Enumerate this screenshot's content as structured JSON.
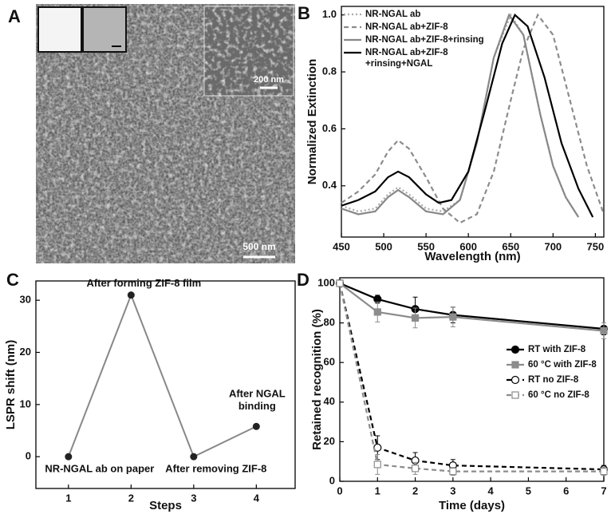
{
  "panels": [
    "A",
    "B",
    "C",
    "D"
  ],
  "image": {
    "scale_bars": [
      "200 nm",
      "500 nm"
    ]
  },
  "chart_data": [
    {
      "type": "line",
      "xlabel": "Wavelength (nm)",
      "ylabel": "Normalized Extinction",
      "xlim": [
        450,
        760
      ],
      "xticks": [
        450,
        500,
        550,
        600,
        650,
        700,
        750
      ],
      "ylim": [
        0.22,
        1.03
      ],
      "yticks": [
        0.4,
        0.6,
        0.8,
        {
          "value": 1,
          "label": "1.0"
        }
      ],
      "legend": "upper left",
      "series": [
        {
          "name": "NR-NGAL ab",
          "color": "#aaaaaa",
          "style": "dotted",
          "x": [
            450,
            470,
            490,
            505,
            517,
            530,
            550,
            570,
            590,
            610,
            630,
            650,
            665,
            685,
            700,
            715,
            730
          ],
          "values": [
            0.33,
            0.31,
            0.32,
            0.37,
            0.395,
            0.37,
            0.32,
            0.31,
            0.35,
            0.55,
            0.85,
            1.0,
            0.93,
            0.65,
            0.47,
            0.36,
            0.29
          ]
        },
        {
          "name": "NR-NGAL ab+ZIF-8",
          "color": "#8c8c8c",
          "style": "dashed",
          "x": [
            450,
            470,
            490,
            505,
            517,
            530,
            550,
            570,
            590,
            610,
            630,
            650,
            665,
            682,
            700,
            720,
            740,
            760
          ],
          "values": [
            0.34,
            0.38,
            0.44,
            0.52,
            0.56,
            0.53,
            0.43,
            0.32,
            0.27,
            0.3,
            0.45,
            0.7,
            0.88,
            1.0,
            0.93,
            0.7,
            0.47,
            0.3
          ]
        },
        {
          "name": "NR-NGAL ab+ZIF-8+rinsing",
          "color": "#888888",
          "style": "solid",
          "x": [
            450,
            470,
            490,
            505,
            517,
            530,
            550,
            570,
            590,
            610,
            630,
            648,
            665,
            685,
            700,
            715,
            730
          ],
          "values": [
            0.32,
            0.3,
            0.31,
            0.36,
            0.385,
            0.36,
            0.31,
            0.3,
            0.35,
            0.55,
            0.85,
            1.0,
            0.93,
            0.65,
            0.47,
            0.36,
            0.29
          ]
        },
        {
          "name": "NR-NGAL ab+ZIF-8\n+rinsing+NGAL",
          "color": "#000000",
          "style": "solid",
          "x": [
            450,
            470,
            490,
            505,
            517,
            530,
            550,
            565,
            580,
            600,
            620,
            640,
            655,
            670,
            690,
            710,
            730,
            747
          ],
          "values": [
            0.33,
            0.35,
            0.38,
            0.43,
            0.45,
            0.43,
            0.37,
            0.34,
            0.35,
            0.45,
            0.67,
            0.9,
            1.0,
            0.96,
            0.78,
            0.55,
            0.39,
            0.29
          ]
        }
      ]
    },
    {
      "type": "line",
      "xlabel": "Steps",
      "ylabel": "LSPR shift (nm)",
      "xlim": [
        0.48,
        4.62
      ],
      "xticks": [
        1,
        2,
        3,
        4
      ],
      "ylim": [
        -6.1,
        33.7
      ],
      "yticks": [
        0,
        10,
        20,
        30
      ],
      "x": [
        1,
        2,
        3,
        4
      ],
      "values": [
        0,
        31,
        0,
        5.8
      ],
      "color": "#888888",
      "marker_color": "#222222",
      "point_labels": [
        "NR-NGAL ab on paper",
        "After forming ZIF-8 film",
        "After removing ZIF-8",
        "After NGAL\nbinding"
      ]
    },
    {
      "type": "line",
      "xlabel": "Time (days)",
      "ylabel": "Retained recognition (%)",
      "xlim": [
        0,
        7
      ],
      "xticks": [
        0,
        1,
        2,
        3,
        4,
        5,
        6,
        7
      ],
      "ylim": [
        0,
        102.8
      ],
      "yticks": [
        0,
        20,
        40,
        60,
        80,
        100
      ],
      "legend": "center right",
      "series": [
        {
          "name": "RT with ZIF-8",
          "color": "#000000",
          "style": "solid",
          "marker": "circle-filled",
          "x": [
            0,
            1,
            2,
            3,
            7
          ],
          "values": [
            100,
            92,
            87,
            84,
            77
          ],
          "errors": [
            0,
            2,
            6,
            4,
            3
          ]
        },
        {
          "name": "60 °C with ZIF-8",
          "color": "#8c8c8c",
          "style": "solid",
          "marker": "square-filled",
          "x": [
            0,
            1,
            2,
            3,
            7
          ],
          "values": [
            100,
            85.5,
            82.5,
            83,
            76
          ],
          "errors": [
            0,
            5,
            5,
            5,
            4
          ]
        },
        {
          "name": "RT no ZIF-8",
          "color": "#000000",
          "style": "dashed",
          "marker": "circle-open",
          "x": [
            0,
            1,
            2,
            3,
            7
          ],
          "values": [
            100,
            17,
            10.5,
            8,
            6
          ],
          "errors": [
            0,
            6,
            4,
            3,
            2
          ]
        },
        {
          "name": "60 °C no ZIF-8",
          "color": "#8c8c8c",
          "style": "dashed",
          "marker": "square-open",
          "x": [
            0,
            1,
            2,
            3,
            7
          ],
          "values": [
            100,
            8.5,
            6.5,
            5,
            5
          ],
          "errors": [
            0,
            5,
            3,
            2,
            2
          ]
        }
      ]
    }
  ]
}
